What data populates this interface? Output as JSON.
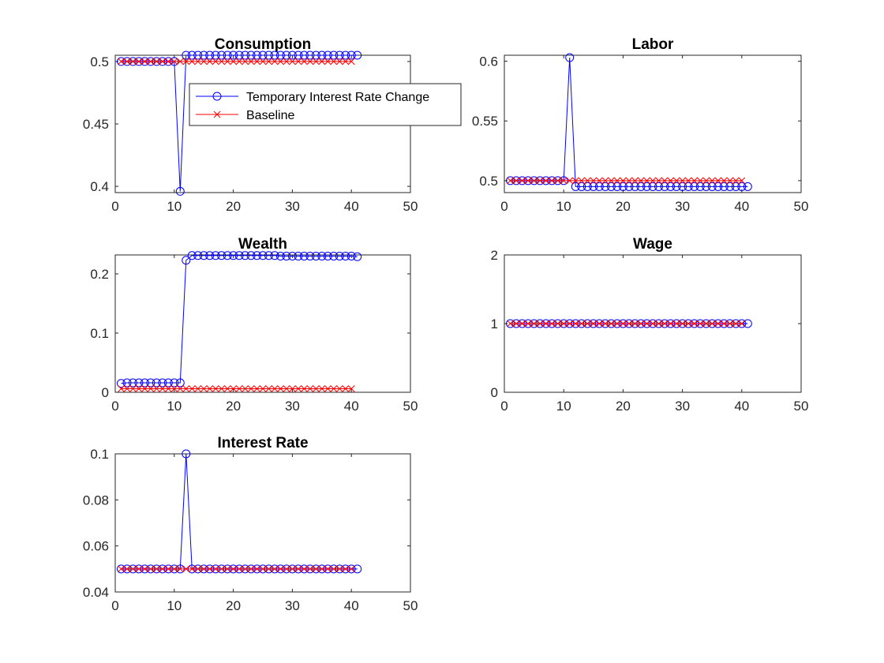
{
  "colors": {
    "temporary": "#0000ff",
    "baseline": "#ff0000",
    "axis": "#262626"
  },
  "legend": {
    "location": "top-right of first panel",
    "entries": [
      {
        "label": "Temporary Interest Rate Change",
        "marker": "circle",
        "color": "#0000ff"
      },
      {
        "label": "Baseline",
        "marker": "x",
        "color": "#ff0000"
      }
    ]
  },
  "chart_data": [
    {
      "type": "line",
      "title": "Consumption",
      "xlim": [
        0,
        50
      ],
      "ylim": [
        0.395,
        0.505
      ],
      "xticks": [
        0,
        10,
        20,
        30,
        40,
        50
      ],
      "yticks": [
        0.4,
        0.45,
        0.5
      ],
      "ytick_labels": [
        "0.4",
        "0.45",
        "0.5"
      ],
      "has_legend": true,
      "series": [
        {
          "name": "Temporary Interest Rate Change",
          "marker": "circle",
          "color": "#0000ff",
          "x_start": 1,
          "values": [
            0.5,
            0.5,
            0.5,
            0.5,
            0.5,
            0.5,
            0.5,
            0.5,
            0.5,
            0.5,
            0.396,
            0.505,
            0.505,
            0.505,
            0.505,
            0.505,
            0.505,
            0.505,
            0.505,
            0.505,
            0.505,
            0.505,
            0.505,
            0.505,
            0.505,
            0.505,
            0.505,
            0.505,
            0.505,
            0.505,
            0.505,
            0.505,
            0.505,
            0.505,
            0.505,
            0.505,
            0.505,
            0.505,
            0.505,
            0.505,
            0.505
          ]
        },
        {
          "name": "Baseline",
          "marker": "x",
          "color": "#ff0000",
          "x_start": 1,
          "values": [
            0.5,
            0.5,
            0.5,
            0.5,
            0.5,
            0.5,
            0.5,
            0.5,
            0.5,
            0.5,
            0.5,
            0.5,
            0.5,
            0.5,
            0.5,
            0.5,
            0.5,
            0.5,
            0.5,
            0.5,
            0.5,
            0.5,
            0.5,
            0.5,
            0.5,
            0.5,
            0.5,
            0.5,
            0.5,
            0.5,
            0.5,
            0.5,
            0.5,
            0.5,
            0.5,
            0.5,
            0.5,
            0.5,
            0.5,
            0.5
          ]
        }
      ]
    },
    {
      "type": "line",
      "title": "Labor",
      "xlim": [
        0,
        50
      ],
      "ylim": [
        0.49,
        0.605
      ],
      "xticks": [
        0,
        10,
        20,
        30,
        40,
        50
      ],
      "yticks": [
        0.5,
        0.55,
        0.6
      ],
      "ytick_labels": [
        "0.5",
        "0.55",
        "0.6"
      ],
      "has_legend": false,
      "series": [
        {
          "name": "Temporary Interest Rate Change",
          "marker": "circle",
          "color": "#0000ff",
          "x_start": 1,
          "values": [
            0.5,
            0.5,
            0.5,
            0.5,
            0.5,
            0.5,
            0.5,
            0.5,
            0.5,
            0.5,
            0.603,
            0.495,
            0.495,
            0.495,
            0.495,
            0.495,
            0.495,
            0.495,
            0.495,
            0.495,
            0.495,
            0.495,
            0.495,
            0.495,
            0.495,
            0.495,
            0.495,
            0.495,
            0.495,
            0.495,
            0.495,
            0.495,
            0.495,
            0.495,
            0.495,
            0.495,
            0.495,
            0.495,
            0.495,
            0.495,
            0.495
          ]
        },
        {
          "name": "Baseline",
          "marker": "x",
          "color": "#ff0000",
          "x_start": 1,
          "values": [
            0.5,
            0.5,
            0.5,
            0.5,
            0.5,
            0.5,
            0.5,
            0.5,
            0.5,
            0.5,
            0.5,
            0.5,
            0.5,
            0.5,
            0.5,
            0.5,
            0.5,
            0.5,
            0.5,
            0.5,
            0.5,
            0.5,
            0.5,
            0.5,
            0.5,
            0.5,
            0.5,
            0.5,
            0.5,
            0.5,
            0.5,
            0.5,
            0.5,
            0.5,
            0.5,
            0.5,
            0.5,
            0.5,
            0.5,
            0.5
          ]
        }
      ]
    },
    {
      "type": "line",
      "title": "Wealth",
      "xlim": [
        0,
        50
      ],
      "ylim": [
        0,
        0.232
      ],
      "xticks": [
        0,
        10,
        20,
        30,
        40,
        50
      ],
      "yticks": [
        0,
        0.1,
        0.2
      ],
      "ytick_labels": [
        "0",
        "0.1",
        "0.2"
      ],
      "has_legend": false,
      "series": [
        {
          "name": "Temporary Interest Rate Change",
          "marker": "circle",
          "color": "#0000ff",
          "x_start": 1,
          "values": [
            0.015,
            0.016,
            0.016,
            0.016,
            0.016,
            0.016,
            0.016,
            0.016,
            0.016,
            0.016,
            0.016,
            0.223,
            0.231,
            0.231,
            0.231,
            0.231,
            0.231,
            0.231,
            0.231,
            0.231,
            0.231,
            0.231,
            0.231,
            0.231,
            0.231,
            0.231,
            0.231,
            0.23,
            0.23,
            0.23,
            0.23,
            0.23,
            0.23,
            0.23,
            0.23,
            0.23,
            0.23,
            0.23,
            0.23,
            0.23,
            0.229
          ]
        },
        {
          "name": "Baseline",
          "marker": "x",
          "color": "#ff0000",
          "x_start": 1,
          "values": [
            0.006,
            0.006,
            0.006,
            0.006,
            0.006,
            0.006,
            0.006,
            0.006,
            0.006,
            0.006,
            0.006,
            0.006,
            0.006,
            0.006,
            0.006,
            0.006,
            0.006,
            0.006,
            0.006,
            0.006,
            0.006,
            0.006,
            0.006,
            0.006,
            0.006,
            0.006,
            0.006,
            0.006,
            0.006,
            0.006,
            0.006,
            0.006,
            0.006,
            0.006,
            0.006,
            0.006,
            0.006,
            0.006,
            0.006,
            0.006
          ]
        }
      ]
    },
    {
      "type": "line",
      "title": "Wage",
      "xlim": [
        0,
        50
      ],
      "ylim": [
        0,
        2
      ],
      "xticks": [
        0,
        10,
        20,
        30,
        40,
        50
      ],
      "yticks": [
        0,
        1,
        2
      ],
      "ytick_labels": [
        "0",
        "1",
        "2"
      ],
      "has_legend": false,
      "series": [
        {
          "name": "Temporary Interest Rate Change",
          "marker": "circle",
          "color": "#0000ff",
          "x_start": 1,
          "values": [
            1,
            1,
            1,
            1,
            1,
            1,
            1,
            1,
            1,
            1,
            1,
            1,
            1,
            1,
            1,
            1,
            1,
            1,
            1,
            1,
            1,
            1,
            1,
            1,
            1,
            1,
            1,
            1,
            1,
            1,
            1,
            1,
            1,
            1,
            1,
            1,
            1,
            1,
            1,
            1,
            1
          ]
        },
        {
          "name": "Baseline",
          "marker": "x",
          "color": "#ff0000",
          "x_start": 1,
          "values": [
            1,
            1,
            1,
            1,
            1,
            1,
            1,
            1,
            1,
            1,
            1,
            1,
            1,
            1,
            1,
            1,
            1,
            1,
            1,
            1,
            1,
            1,
            1,
            1,
            1,
            1,
            1,
            1,
            1,
            1,
            1,
            1,
            1,
            1,
            1,
            1,
            1,
            1,
            1,
            1
          ]
        }
      ]
    },
    {
      "type": "line",
      "title": "Interest Rate",
      "xlim": [
        0,
        50
      ],
      "ylim": [
        0.04,
        0.1
      ],
      "xticks": [
        0,
        10,
        20,
        30,
        40,
        50
      ],
      "yticks": [
        0.04,
        0.06,
        0.08,
        0.1
      ],
      "ytick_labels": [
        "0.04",
        "0.06",
        "0.08",
        "0.1"
      ],
      "has_legend": false,
      "series": [
        {
          "name": "Temporary Interest Rate Change",
          "marker": "circle",
          "color": "#0000ff",
          "x_start": 1,
          "values": [
            0.05,
            0.05,
            0.05,
            0.05,
            0.05,
            0.05,
            0.05,
            0.05,
            0.05,
            0.05,
            0.05,
            0.1,
            0.05,
            0.05,
            0.05,
            0.05,
            0.05,
            0.05,
            0.05,
            0.05,
            0.05,
            0.05,
            0.05,
            0.05,
            0.05,
            0.05,
            0.05,
            0.05,
            0.05,
            0.05,
            0.05,
            0.05,
            0.05,
            0.05,
            0.05,
            0.05,
            0.05,
            0.05,
            0.05,
            0.05,
            0.05
          ]
        },
        {
          "name": "Baseline",
          "marker": "x",
          "color": "#ff0000",
          "x_start": 1,
          "values": [
            0.05,
            0.05,
            0.05,
            0.05,
            0.05,
            0.05,
            0.05,
            0.05,
            0.05,
            0.05,
            0.05,
            0.05,
            0.05,
            0.05,
            0.05,
            0.05,
            0.05,
            0.05,
            0.05,
            0.05,
            0.05,
            0.05,
            0.05,
            0.05,
            0.05,
            0.05,
            0.05,
            0.05,
            0.05,
            0.05,
            0.05,
            0.05,
            0.05,
            0.05,
            0.05,
            0.05,
            0.05,
            0.05,
            0.05,
            0.05
          ]
        }
      ]
    }
  ]
}
